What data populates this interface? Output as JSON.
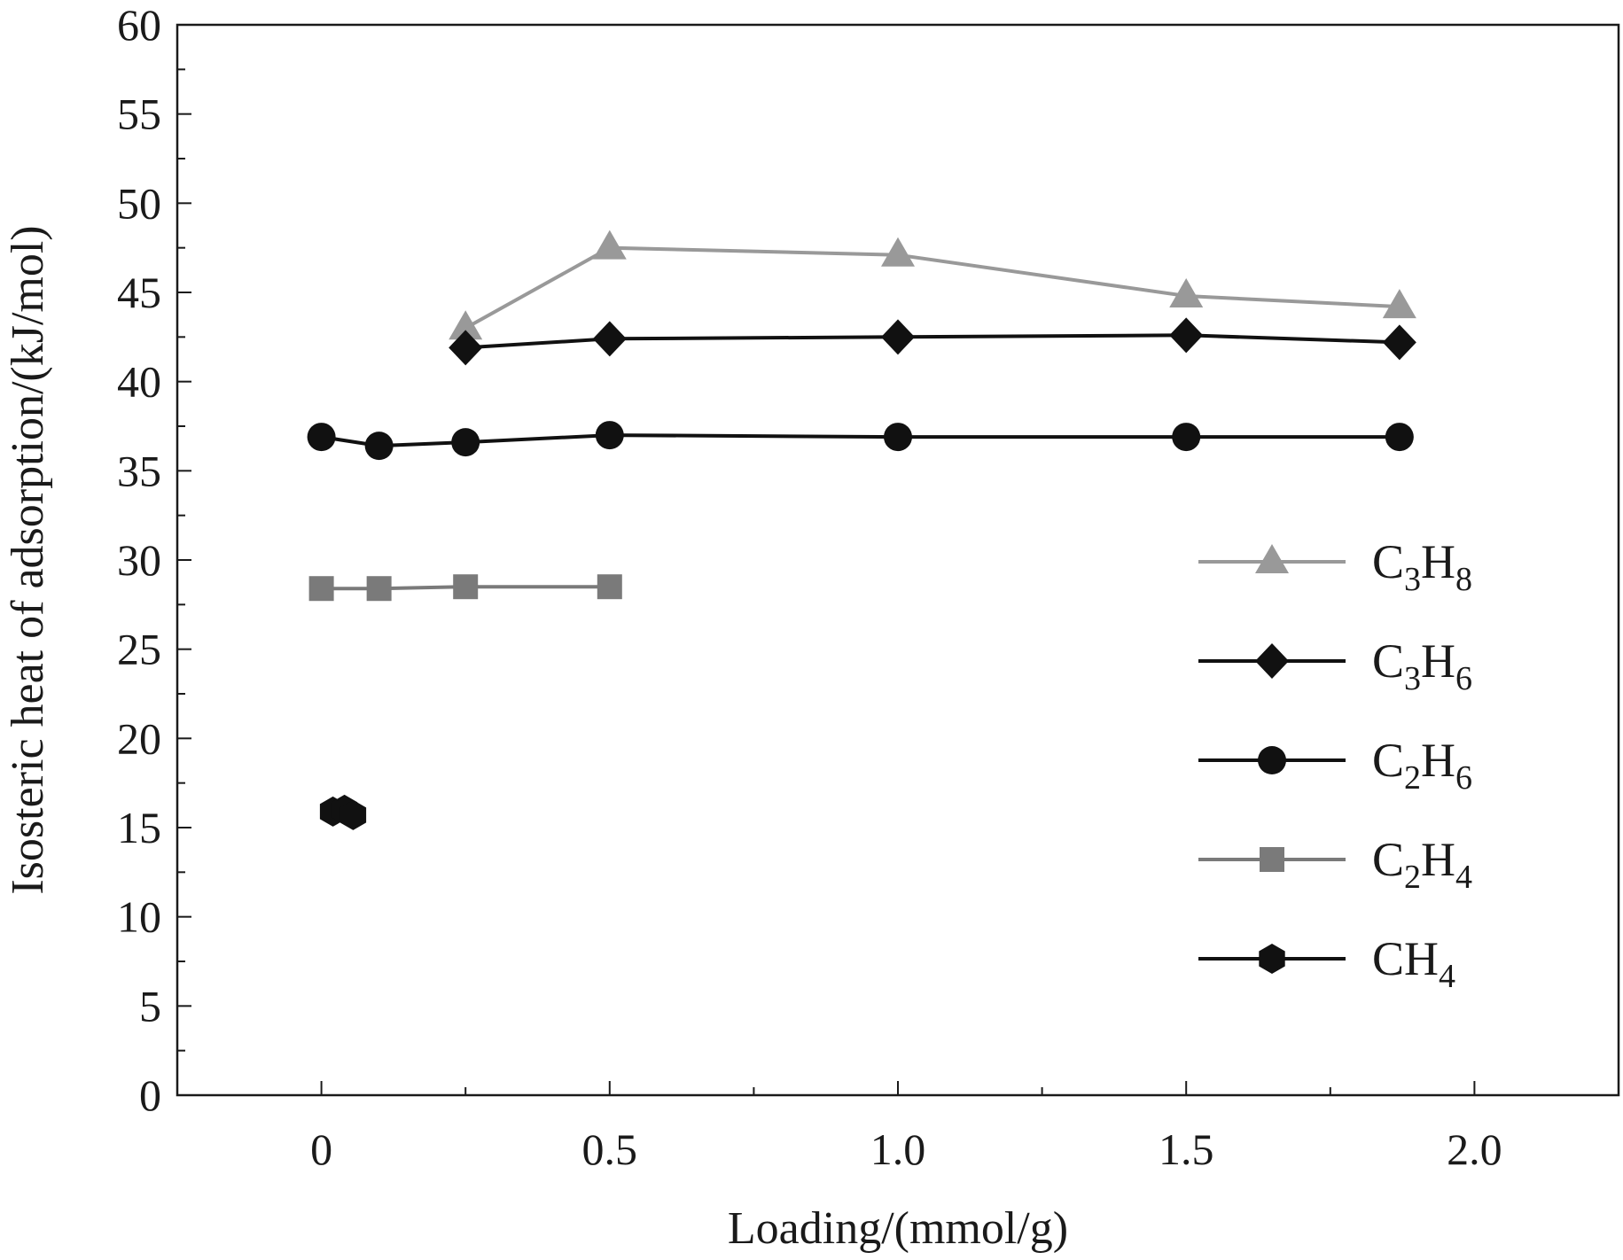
{
  "chart_data": {
    "type": "line",
    "title": "",
    "xlabel": "Loading/(mmol/g)",
    "ylabel": "Isosteric heat of adsorption/(kJ/mol)",
    "xlim": [
      -0.25,
      2.25
    ],
    "ylim": [
      0,
      60
    ],
    "x_ticks": [
      0,
      0.5,
      1.0,
      1.5,
      2.0
    ],
    "x_tick_labels": [
      "0",
      "0.5",
      "1.0",
      "1.5",
      "2.0"
    ],
    "y_ticks": [
      0,
      5,
      10,
      15,
      20,
      25,
      30,
      35,
      40,
      45,
      50,
      55,
      60
    ],
    "y_tick_labels": [
      "0",
      "5",
      "10",
      "15",
      "20",
      "25",
      "30",
      "35",
      "40",
      "45",
      "50",
      "55",
      "60"
    ],
    "grid": false,
    "legend_position": "right",
    "series": [
      {
        "name": "C3H8",
        "label_parts": [
          [
            "C",
            ""
          ],
          [
            "3",
            "sub"
          ],
          [
            "H",
            ""
          ],
          [
            "8",
            "sub"
          ]
        ],
        "marker": "triangle",
        "color": "#999999",
        "x": [
          0.25,
          0.5,
          1.0,
          1.5,
          1.87
        ],
        "y": [
          43.0,
          47.5,
          47.1,
          44.8,
          44.2
        ]
      },
      {
        "name": "C3H6",
        "label_parts": [
          [
            "C",
            ""
          ],
          [
            "3",
            "sub"
          ],
          [
            "H",
            ""
          ],
          [
            "6",
            "sub"
          ]
        ],
        "marker": "diamond",
        "color": "#111111",
        "x": [
          0.25,
          0.5,
          1.0,
          1.5,
          1.87
        ],
        "y": [
          41.9,
          42.4,
          42.5,
          42.6,
          42.2
        ]
      },
      {
        "name": "C2H6",
        "label_parts": [
          [
            "C",
            ""
          ],
          [
            "2",
            "sub"
          ],
          [
            "H",
            ""
          ],
          [
            "6",
            "sub"
          ]
        ],
        "marker": "circle",
        "color": "#111111",
        "x": [
          0.0,
          0.1,
          0.25,
          0.5,
          1.0,
          1.5,
          1.87
        ],
        "y": [
          36.9,
          36.4,
          36.6,
          37.0,
          36.9,
          36.9,
          36.9
        ]
      },
      {
        "name": "C2H4",
        "label_parts": [
          [
            "C",
            ""
          ],
          [
            "2",
            "sub"
          ],
          [
            "H",
            ""
          ],
          [
            "4",
            "sub"
          ]
        ],
        "marker": "square",
        "color": "#7a7a7a",
        "x": [
          0.0,
          0.1,
          0.25,
          0.5
        ],
        "y": [
          28.4,
          28.4,
          28.5,
          28.5
        ]
      },
      {
        "name": "CH4",
        "label_parts": [
          [
            "CH",
            ""
          ],
          [
            "4",
            "sub"
          ]
        ],
        "marker": "hexagon",
        "color": "#111111",
        "x": [
          0.02,
          0.04,
          0.055
        ],
        "y": [
          15.9,
          16.0,
          15.7
        ]
      }
    ]
  }
}
